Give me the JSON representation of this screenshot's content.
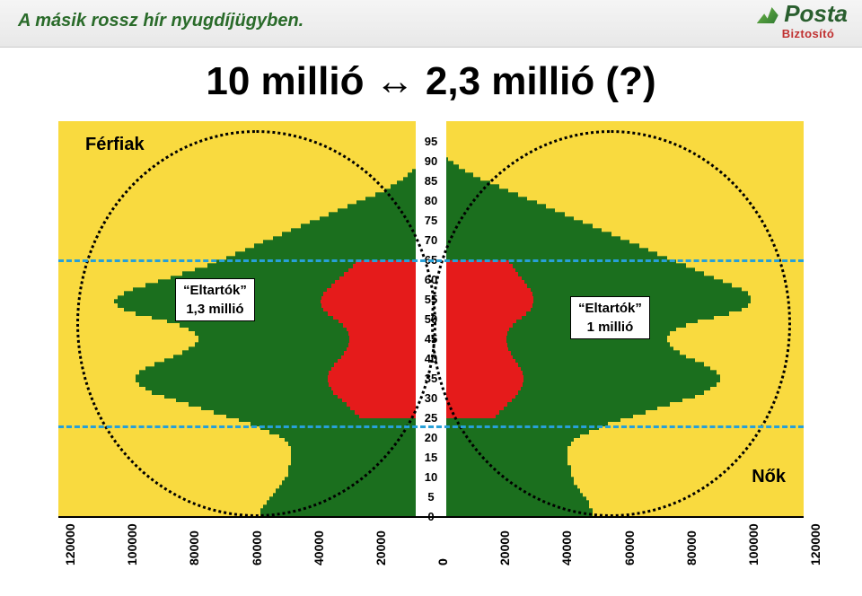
{
  "header": {
    "title": "A másik rossz hír nyugdíjügyben.",
    "title_fontsize": 20,
    "logo_main": "Posta",
    "logo_sub": "Biztosító"
  },
  "headline": {
    "text": "10 millió ↔ 2,3 millió (?)",
    "fontsize": 44
  },
  "chart": {
    "type": "population-pyramid",
    "background_color": "#f9da3f",
    "bar_default_color": "#1b6f1e",
    "bar_highlight_color": "#e51b1b",
    "highlight_age_min": 25,
    "highlight_age_max": 64,
    "x_max": 120000,
    "x_ticks_left": [
      120000,
      100000,
      80000,
      60000,
      40000,
      20000,
      0
    ],
    "x_ticks_right": [
      0,
      20000,
      40000,
      60000,
      80000,
      100000,
      120000
    ],
    "x_labels_left": [
      "120000",
      "100000",
      "80000",
      "60000",
      "40000",
      "20000",
      "0"
    ],
    "x_labels_right": [
      "0",
      "20000",
      "40000",
      "60000",
      "80000",
      "100000",
      "120000"
    ],
    "age_labels": [
      95,
      90,
      85,
      80,
      75,
      70,
      65,
      60,
      55,
      50,
      45,
      40,
      35,
      30,
      25,
      20,
      15,
      10,
      5,
      0
    ],
    "age_max": 100,
    "age_label_fontsize": 13,
    "males_label": "Férfiak",
    "females_label": "Nők",
    "box_left": {
      "line1": "“Eltartók”",
      "line2": "1,3 millió"
    },
    "box_right": {
      "line1": "“Eltartók”",
      "line2": "1 millió"
    },
    "dash_upper_age": 65,
    "dash_upper_color": "#27a0d8",
    "dash_lower_age": 23,
    "dash_lower_color": "#27a0d8",
    "males": [
      55000,
      55000,
      54000,
      53000,
      52000,
      51000,
      50000,
      49000,
      48000,
      47000,
      46000,
      46000,
      46000,
      45000,
      45000,
      45000,
      45000,
      45000,
      46000,
      47000,
      49000,
      52000,
      55000,
      58000,
      62000,
      66000,
      70000,
      74000,
      78000,
      82000,
      86000,
      90000,
      92000,
      94000,
      95000,
      95000,
      94000,
      92000,
      89000,
      86000,
      83000,
      80000,
      78000,
      76000,
      75000,
      75000,
      76000,
      78000,
      81000,
      85000,
      90000,
      95000,
      99000,
      101000,
      102000,
      101000,
      99000,
      96000,
      92000,
      88000,
      84000,
      80000,
      76000,
      72000,
      69000,
      66000,
      63000,
      60000,
      57000,
      54000,
      51000,
      48000,
      45000,
      42000,
      39000,
      36000,
      33000,
      30000,
      27000,
      24000,
      21000,
      18000,
      15000,
      13000,
      11000,
      9000,
      7500,
      6000,
      4800,
      3800,
      3000,
      2300,
      1700,
      1200,
      800,
      500,
      300,
      180,
      100,
      50
    ],
    "females": [
      52000,
      52000,
      51000,
      51000,
      50000,
      49000,
      48000,
      47000,
      46000,
      46000,
      45000,
      45000,
      45000,
      44000,
      44000,
      44000,
      44000,
      44000,
      45000,
      46000,
      48000,
      51000,
      54000,
      57000,
      61000,
      65000,
      69000,
      73000,
      77000,
      81000,
      85000,
      88000,
      90000,
      92000,
      93000,
      93000,
      92000,
      90000,
      88000,
      85000,
      82000,
      80000,
      78000,
      77000,
      76000,
      76000,
      77000,
      79000,
      82000,
      86000,
      91000,
      96000,
      100000,
      102000,
      103000,
      103000,
      102000,
      100000,
      97000,
      94000,
      91000,
      88000,
      85000,
      82000,
      79000,
      76000,
      73000,
      70000,
      67000,
      64000,
      61000,
      58000,
      55000,
      52000,
      49000,
      46000,
      43000,
      40000,
      37000,
      34000,
      31000,
      28000,
      25000,
      22000,
      19000,
      16000,
      13500,
      11000,
      9000,
      7200,
      5600,
      4300,
      3200,
      2300,
      1600,
      1050,
      650,
      380,
      200,
      100
    ],
    "highlight_fraction": {
      "male": 0.35,
      "female": 0.32
    }
  }
}
